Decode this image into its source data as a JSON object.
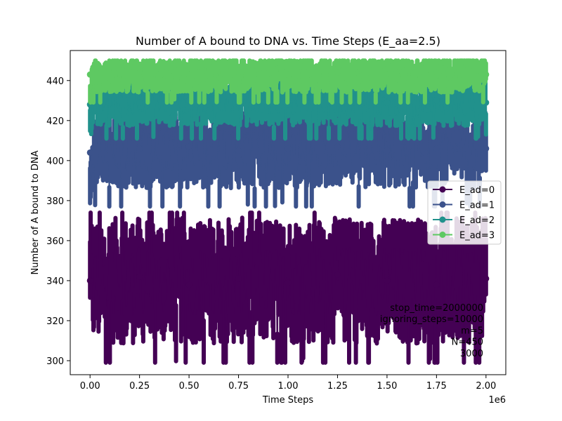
{
  "chart_data": {
    "type": "scatter",
    "title": "Number of A bound to DNA vs. Time Steps (E_aa=2.5)",
    "xlabel": "Time Steps",
    "ylabel": "Number of A bound to DNA",
    "x_offset_text": "1e6",
    "xlim": [
      -100000,
      2100000
    ],
    "ylim": [
      293,
      455
    ],
    "x_ticks": [
      0,
      250000,
      500000,
      750000,
      1000000,
      1250000,
      1500000,
      1750000,
      2000000
    ],
    "x_tick_labels": [
      "0.00",
      "0.25",
      "0.50",
      "0.75",
      "1.00",
      "1.25",
      "1.50",
      "1.75",
      "2.00"
    ],
    "y_ticks": [
      300,
      320,
      340,
      360,
      380,
      400,
      420,
      440
    ],
    "y_tick_labels": [
      "300",
      "320",
      "340",
      "360",
      "380",
      "400",
      "420",
      "440"
    ],
    "legend_position": "center-right",
    "grid": false,
    "series": [
      {
        "name": "E_ad=0",
        "color": "#440154",
        "mean": 340,
        "band_low": 323,
        "band_high": 358,
        "min": 299,
        "max": 374,
        "sample_x": [
          0,
          250000,
          500000,
          750000,
          1000000,
          1250000,
          1500000,
          1750000,
          2000000
        ],
        "sample_y": [
          340,
          342,
          338,
          341,
          339,
          343,
          340,
          338,
          341
        ]
      },
      {
        "name": "E_ad=1",
        "color": "#3b528b",
        "mean": 406,
        "band_low": 396,
        "band_high": 418,
        "min": 377,
        "max": 424,
        "sample_x": [
          0,
          250000,
          500000,
          750000,
          1000000,
          1250000,
          1500000,
          1750000,
          2000000
        ],
        "sample_y": [
          404,
          406,
          407,
          405,
          406,
          407,
          405,
          406,
          406
        ]
      },
      {
        "name": "E_ad=2",
        "color": "#21918c",
        "mean": 429,
        "band_low": 423,
        "band_high": 436,
        "min": 411,
        "max": 442,
        "sample_x": [
          0,
          250000,
          500000,
          750000,
          1000000,
          1250000,
          1500000,
          1750000,
          2000000
        ],
        "sample_y": [
          428,
          429,
          430,
          429,
          428,
          430,
          429,
          430,
          429
        ]
      },
      {
        "name": "E_ad=3",
        "color": "#5ec962",
        "mean": 443,
        "band_low": 438,
        "band_high": 448,
        "min": 429,
        "max": 450,
        "sample_x": [
          0,
          250000,
          500000,
          750000,
          1000000,
          1250000,
          1500000,
          1750000,
          2000000
        ],
        "sample_y": [
          443,
          444,
          443,
          444,
          443,
          444,
          443,
          444,
          443
        ]
      }
    ],
    "annotations": [
      "stop_time=2000000",
      "ignoring_steps=10000",
      "m=5",
      "N=450",
      "3000"
    ]
  }
}
